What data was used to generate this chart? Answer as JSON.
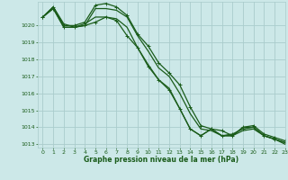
{
  "background_color": "#cce8e8",
  "grid_color": "#aacccc",
  "line_color": "#1a5c1a",
  "marker_color": "#1a5c1a",
  "title": "Graphe pression niveau de la mer (hPa)",
  "xlim": [
    -0.5,
    23
  ],
  "ylim": [
    1012.8,
    1021.4
  ],
  "yticks": [
    1013,
    1014,
    1015,
    1016,
    1017,
    1018,
    1019,
    1020
  ],
  "xticks": [
    0,
    1,
    2,
    3,
    4,
    5,
    6,
    7,
    8,
    9,
    10,
    11,
    12,
    13,
    14,
    15,
    16,
    17,
    18,
    19,
    20,
    21,
    22,
    23
  ],
  "series": [
    {
      "y": [
        1020.5,
        1021.1,
        1020.0,
        1020.0,
        1020.2,
        1021.2,
        1021.3,
        1021.1,
        1020.6,
        1019.5,
        1018.8,
        1017.8,
        1017.2,
        1016.5,
        1015.2,
        1014.1,
        1013.9,
        1013.8,
        1013.5,
        1014.0,
        1014.1,
        1013.6,
        1013.4,
        1013.2
      ],
      "marker": true,
      "lw": 0.9
    },
    {
      "y": [
        1020.5,
        1021.1,
        1020.1,
        1019.9,
        1020.0,
        1021.0,
        1021.0,
        1020.9,
        1020.5,
        1019.4,
        1018.5,
        1017.5,
        1017.0,
        1016.0,
        1014.8,
        1013.9,
        1013.8,
        1013.5,
        1013.5,
        1013.8,
        1013.9,
        1013.5,
        1013.3,
        1013.1
      ],
      "marker": false,
      "lw": 0.9
    },
    {
      "y": [
        1020.5,
        1021.0,
        1019.9,
        1019.9,
        1020.1,
        1020.5,
        1020.5,
        1020.4,
        1019.9,
        1018.7,
        1017.7,
        1016.8,
        1016.3,
        1015.1,
        1013.9,
        1013.5,
        1013.9,
        1013.5,
        1013.5,
        1014.0,
        1014.0,
        1013.5,
        1013.3,
        1013.0
      ],
      "marker": false,
      "lw": 0.9
    },
    {
      "y": [
        1020.5,
        1021.0,
        1019.9,
        1019.9,
        1020.0,
        1020.2,
        1020.5,
        1020.3,
        1019.4,
        1018.7,
        1017.6,
        1016.8,
        1016.2,
        1015.1,
        1013.9,
        1013.5,
        1013.9,
        1013.5,
        1013.6,
        1013.9,
        1014.0,
        1013.5,
        1013.3,
        1013.1
      ],
      "marker": true,
      "lw": 0.9
    }
  ]
}
